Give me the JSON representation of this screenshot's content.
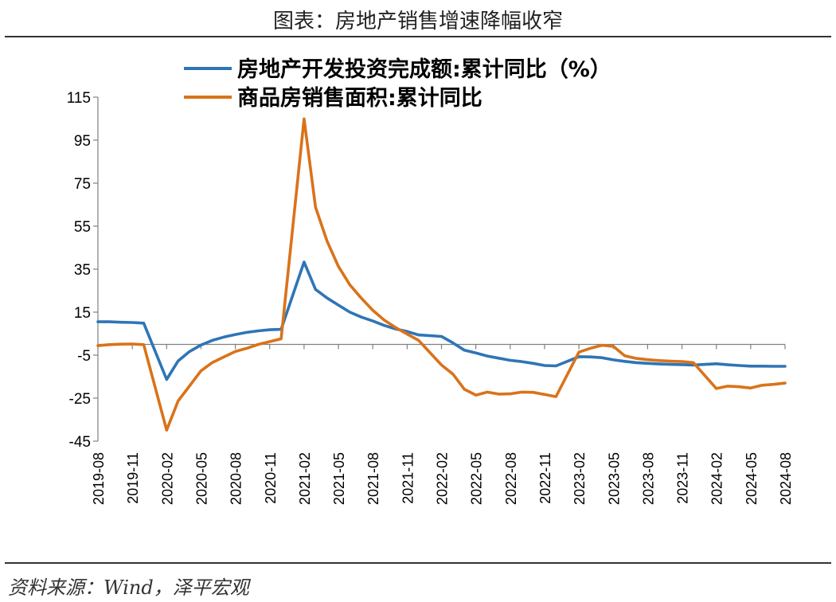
{
  "header": {
    "title": "图表：房地产销售增速降幅收窄"
  },
  "footer": {
    "source": "资料来源：Wind，泽平宏观"
  },
  "chart_data": {
    "type": "line",
    "ylim": [
      -45,
      115
    ],
    "yticks": [
      115,
      95,
      75,
      55,
      35,
      15,
      -5,
      -25,
      -45
    ],
    "xticks": [
      "2019-08",
      "2019-11",
      "2020-02",
      "2020-05",
      "2020-08",
      "2020-11",
      "2021-02",
      "2021-05",
      "2021-08",
      "2021-11",
      "2022-02",
      "2022-05",
      "2022-08",
      "2022-11",
      "2023-02",
      "2023-05",
      "2023-08",
      "2023-11",
      "2024-02",
      "2024-05",
      "2024-08"
    ],
    "legend_position": "top-center",
    "x": [
      "2019-08",
      "2019-09",
      "2019-10",
      "2019-11",
      "2019-12",
      "2020-02",
      "2020-03",
      "2020-04",
      "2020-05",
      "2020-06",
      "2020-07",
      "2020-08",
      "2020-09",
      "2020-10",
      "2020-11",
      "2020-12",
      "2021-02",
      "2021-03",
      "2021-04",
      "2021-05",
      "2021-06",
      "2021-07",
      "2021-08",
      "2021-09",
      "2021-10",
      "2021-11",
      "2021-12",
      "2022-02",
      "2022-03",
      "2022-04",
      "2022-05",
      "2022-06",
      "2022-07",
      "2022-08",
      "2022-09",
      "2022-10",
      "2022-11",
      "2022-12",
      "2023-02",
      "2023-03",
      "2023-04",
      "2023-05",
      "2023-06",
      "2023-07",
      "2023-08",
      "2023-09",
      "2023-10",
      "2023-11",
      "2023-12",
      "2024-02",
      "2024-03",
      "2024-04",
      "2024-05",
      "2024-06",
      "2024-07",
      "2024-08"
    ],
    "series": [
      {
        "name": "房地产开发投资完成额:累计同比（%）",
        "color": "#2E75B6",
        "values": [
          10.5,
          10.5,
          10.3,
          10.2,
          9.9,
          -16.3,
          -7.7,
          -3.3,
          -0.3,
          1.9,
          3.4,
          4.6,
          5.6,
          6.3,
          6.8,
          7.0,
          38.3,
          25.6,
          21.6,
          18.3,
          15.0,
          12.7,
          10.9,
          8.8,
          7.2,
          6.0,
          4.4,
          3.7,
          0.7,
          -2.7,
          -4.0,
          -5.4,
          -6.4,
          -7.4,
          -8.0,
          -8.8,
          -9.8,
          -10.0,
          -5.7,
          -5.8,
          -6.2,
          -7.2,
          -7.9,
          -8.5,
          -8.8,
          -9.1,
          -9.3,
          -9.4,
          -9.6,
          -9.0,
          -9.5,
          -9.8,
          -10.1,
          -10.1,
          -10.2,
          -10.2
        ]
      },
      {
        "name": "商品房销售面积:累计同比",
        "color": "#D9731A",
        "values": [
          -0.6,
          -0.1,
          0.1,
          0.2,
          -0.1,
          -39.9,
          -26.3,
          -19.3,
          -12.3,
          -8.4,
          -5.8,
          -3.3,
          -1.8,
          0.0,
          1.3,
          2.6,
          104.9,
          63.8,
          48.1,
          36.3,
          27.7,
          21.5,
          15.9,
          11.3,
          7.8,
          4.8,
          1.9,
          -9.6,
          -13.8,
          -20.9,
          -23.6,
          -22.2,
          -23.1,
          -23.0,
          -22.2,
          -22.3,
          -23.3,
          -24.3,
          -3.6,
          -1.8,
          -0.4,
          -0.9,
          -5.3,
          -6.5,
          -7.1,
          -7.5,
          -7.8,
          -8.0,
          -8.5,
          -20.5,
          -19.4,
          -19.7,
          -20.3,
          -19.0,
          -18.6,
          -18.0
        ]
      }
    ]
  }
}
